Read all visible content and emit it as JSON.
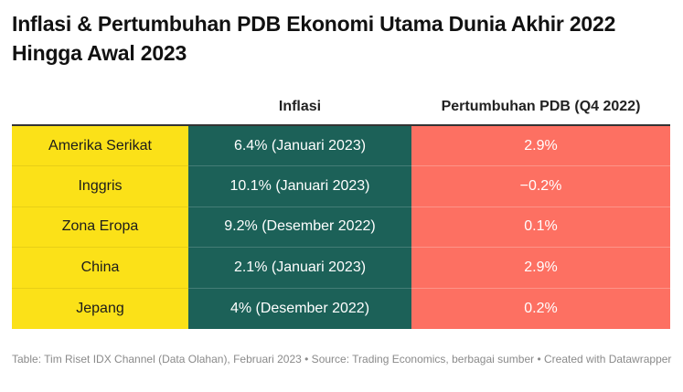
{
  "title": "Inflasi & Pertumbuhan PDB Ekonomi Utama Dunia Akhir 2022 Hingga Awal 2023",
  "footer": "Table: Tim Riset IDX Channel (Data Olahan), Februari 2023 • Source: Trading Economics, berbagai sumber • Created with Datawrapper",
  "colors": {
    "country_column": "#fbe118",
    "inflasi_column": "#1c6158",
    "gdp_column": "#fd7062"
  },
  "chart_data": {
    "type": "table",
    "columns": [
      "",
      "Inflasi",
      "Pertumbuhan PDB (Q4 2022)"
    ],
    "rows": [
      [
        "Amerika Serikat",
        "6.4% (Januari 2023)",
        "2.9%"
      ],
      [
        "Inggris",
        "10.1% (Januari 2023)",
        "−0.2%"
      ],
      [
        "Zona Eropa",
        "9.2% (Desember 2022)",
        "0.1%"
      ],
      [
        "China",
        "2.1% (Januari 2023)",
        "2.9%"
      ],
      [
        "Jepang",
        "4% (Desember 2022)",
        "0.2%"
      ]
    ]
  }
}
